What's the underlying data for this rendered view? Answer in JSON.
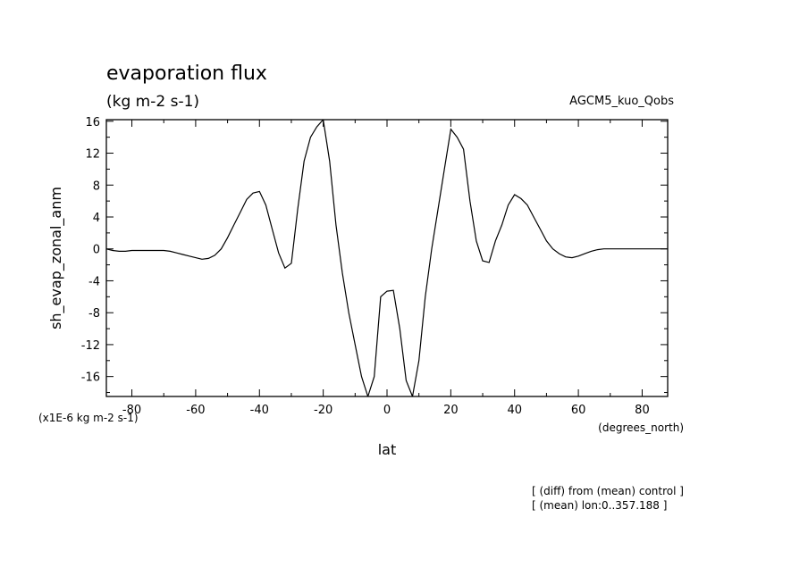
{
  "chart_data": {
    "type": "line",
    "title": "evaporation flux",
    "subtitle": "(kg m-2 s-1)",
    "dataset": "AGCM5_kuo_Qobs",
    "xlabel": "lat",
    "ylabel": "sh_evap_zonal_anm",
    "xunit": "(degrees_north)",
    "yunit": "(x1E-6 kg m-2 s-1)",
    "xlim": [
      -88,
      88
    ],
    "ylim": [
      -18.5,
      16.2
    ],
    "xticks": [
      -80,
      -60,
      -40,
      -20,
      0,
      20,
      40,
      60,
      80
    ],
    "yticks": [
      16,
      12,
      8,
      4,
      0,
      -4,
      -8,
      -12,
      -16
    ],
    "grid": false,
    "series": [
      {
        "x": [
          -88,
          -86,
          -84,
          -82,
          -80,
          -78,
          -76,
          -74,
          -72,
          -70,
          -68,
          -66,
          -64,
          -62,
          -60,
          -58,
          -56,
          -54,
          -52,
          -50,
          -48,
          -46,
          -44,
          -42,
          -40,
          -38,
          -36,
          -34,
          -32,
          -30,
          -28,
          -26,
          -24,
          -22,
          -20,
          -18,
          -16,
          -14,
          -12,
          -10,
          -8,
          -6,
          -4,
          -2,
          0,
          2,
          4,
          6,
          8,
          10,
          12,
          14,
          16,
          18,
          20,
          22,
          24,
          26,
          28,
          30,
          32,
          34,
          36,
          38,
          40,
          42,
          44,
          46,
          48,
          50,
          52,
          54,
          56,
          58,
          60,
          62,
          64,
          66,
          68,
          70,
          72,
          74,
          76,
          78,
          80,
          82,
          84,
          86,
          88
        ],
        "values": [
          0,
          -0.2,
          -0.3,
          -0.3,
          -0.2,
          -0.2,
          -0.2,
          -0.2,
          -0.2,
          -0.2,
          -0.3,
          -0.5,
          -0.7,
          -0.9,
          -1.1,
          -1.3,
          -1.2,
          -0.8,
          0,
          1.4,
          3,
          4.6,
          6.2,
          7,
          7.2,
          5.5,
          2.5,
          -0.5,
          -2.4,
          -1.8,
          5,
          11,
          14,
          15.3,
          16.2,
          11,
          3,
          -3,
          -8,
          -12,
          -16,
          -18.5,
          -16,
          -6,
          -5.3,
          -5.2,
          -10,
          -16.5,
          -18.5,
          -14,
          -6,
          0,
          5,
          10,
          15,
          14,
          12.5,
          6,
          1,
          -1.5,
          -1.7,
          1,
          3,
          5.5,
          6.8,
          6.3,
          5.5,
          4,
          2.5,
          1,
          0,
          -0.6,
          -1,
          -1.1,
          -0.9,
          -0.6,
          -0.3,
          -0.1,
          0,
          0,
          0,
          0,
          0,
          0,
          0,
          0,
          0,
          0,
          0
        ]
      }
    ]
  },
  "notes": [
    "[ (diff) from (mean) control ]",
    "[ (mean) lon:0..357.188 ]"
  ]
}
